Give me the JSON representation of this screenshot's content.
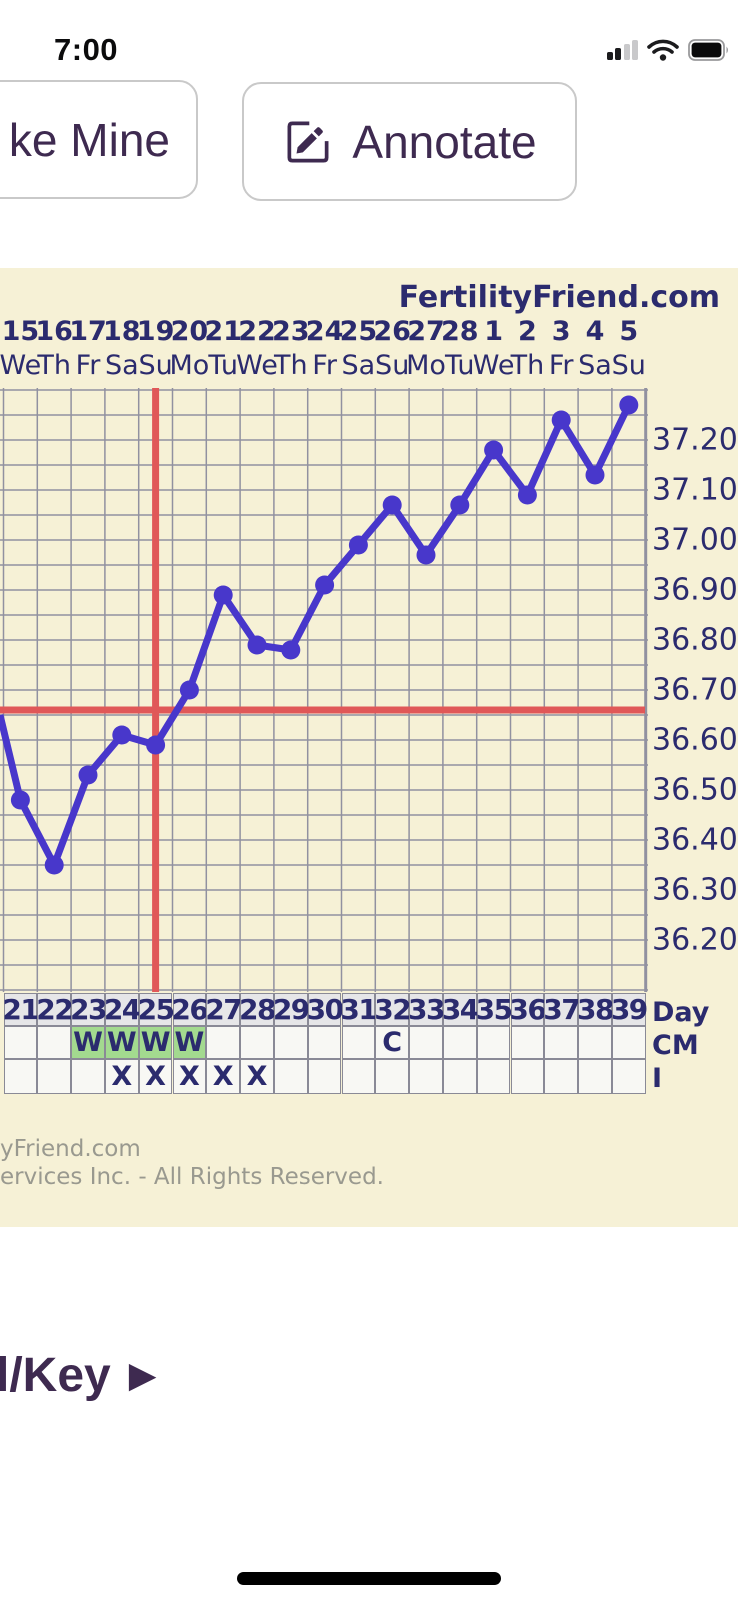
{
  "status_bar": {
    "time": "7:00"
  },
  "toolbar": {
    "make_mine_label": "ke Mine",
    "annotate_label": "Annotate"
  },
  "chart": {
    "brand": "FertilityFriend.com",
    "dates": [
      "15",
      "16",
      "17",
      "18",
      "19",
      "20",
      "21",
      "22",
      "23",
      "24",
      "25",
      "26",
      "27",
      "28",
      "1",
      "2",
      "3",
      "4",
      "5"
    ],
    "weekdays": [
      "We",
      "Th",
      "Fr",
      "Sa",
      "Su",
      "Mo",
      "Tu",
      "We",
      "Th",
      "Fr",
      "Sa",
      "Su",
      "Mo",
      "Tu",
      "We",
      "Th",
      "Fr",
      "Sa",
      "Su"
    ],
    "y_axis_labels": [
      "37.20",
      "37.10",
      "37.00",
      "36.90",
      "36.80",
      "36.70",
      "36.60",
      "36.50",
      "36.40",
      "36.30",
      "36.20"
    ],
    "table": {
      "day_label": "Day",
      "cm_label": "CM",
      "i_label": "I",
      "days": [
        "21",
        "22",
        "23",
        "24",
        "25",
        "26",
        "27",
        "28",
        "29",
        "30",
        "31",
        "32",
        "33",
        "34",
        "35",
        "36",
        "37",
        "38",
        "39"
      ],
      "cm_marks": {
        "23": "W",
        "24": "W",
        "25": "W",
        "26": "W",
        "32": "C"
      },
      "cm_green_days": [
        23,
        24,
        25,
        26
      ],
      "i_marks": {
        "24": "X",
        "25": "X",
        "26": "X",
        "27": "X",
        "28": "X"
      }
    },
    "colors": {
      "panel_bg": "#f6f1d6",
      "grid": "#9191a0",
      "temp_line": "#4837cb",
      "red_line": "#e05858",
      "navy_text": "#2b2b6e",
      "green_cell": "#a3da8f",
      "day_row_bg": "#e6e6e8"
    }
  },
  "chart_data": {
    "type": "line",
    "title": "FertilityFriend.com BBT chart (Celsius)",
    "x": [
      21,
      22,
      23,
      24,
      25,
      26,
      27,
      28,
      29,
      30,
      31,
      32,
      33,
      34,
      35,
      36,
      37,
      38,
      39
    ],
    "series": [
      {
        "name": "temperature_c",
        "values": [
          36.48,
          36.35,
          36.53,
          36.61,
          36.59,
          36.7,
          36.89,
          36.79,
          36.78,
          36.91,
          36.99,
          37.07,
          36.97,
          37.07,
          37.18,
          37.09,
          37.24,
          37.13,
          37.27
        ]
      }
    ],
    "edge_entry_temp": 36.65,
    "coverline_temp": 36.66,
    "ovulation_line_day": 25,
    "ylim_visible": [
      36.1,
      37.3
    ],
    "ytick_step": 0.1,
    "grid": true,
    "xlabel": "Day",
    "ylabel": ""
  },
  "footer": {
    "line1": "yFriend.com",
    "line2": "ervices Inc. - All Rights Reserved."
  },
  "legend": {
    "label": "l/Key",
    "arrow": "▶"
  }
}
